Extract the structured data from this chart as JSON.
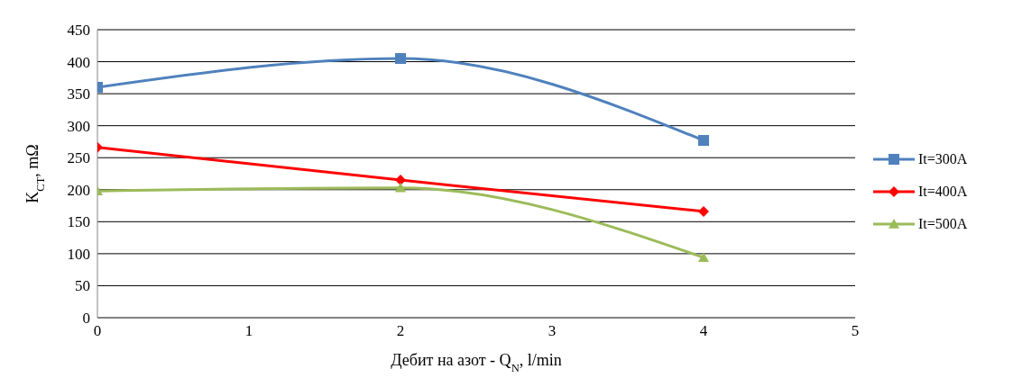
{
  "chart_data": {
    "type": "line",
    "xlabel": "Дебит на азот - Q$_{N}$, l/min",
    "ylabel": "K$_{CT}$, mΩ",
    "x": [
      0,
      2,
      4
    ],
    "series": [
      {
        "name": "It=300A",
        "color": "#4f81bd",
        "marker": "square",
        "values": [
          360,
          405,
          277
        ]
      },
      {
        "name": "It=400A",
        "color": "#ff0000",
        "marker": "diamond",
        "values": [
          266,
          215,
          166
        ]
      },
      {
        "name": "It=500A",
        "color": "#9bbb59",
        "marker": "triangle",
        "values": [
          198,
          203,
          94
        ]
      }
    ],
    "xlim": [
      0,
      5
    ],
    "xticks": [
      0,
      1,
      2,
      3,
      4,
      5
    ],
    "ylim": [
      0,
      450
    ],
    "yticks": [
      0,
      50,
      100,
      150,
      200,
      250,
      300,
      350,
      400,
      450
    ],
    "grid": "y",
    "legend": "right",
    "line_style": "solid"
  }
}
